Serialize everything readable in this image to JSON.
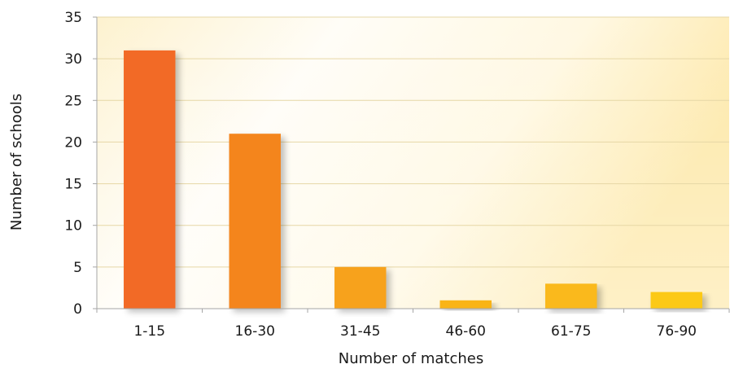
{
  "colors": {
    "bars": [
      "#f26a25",
      "#f4851f",
      "#f7a21e",
      "#f9b417",
      "#fab91a",
      "#fcc914"
    ],
    "grid": "#e6d7a6",
    "axis": "#a6a6a6",
    "bg_light": "#fffdf6",
    "bg_warm": "#fde9a6"
  },
  "chart_data": {
    "type": "bar",
    "categories": [
      "1-15",
      "16-30",
      "31-45",
      "46-60",
      "61-75",
      "76-90"
    ],
    "values": [
      31,
      21,
      5,
      1,
      3,
      2
    ],
    "xlabel": "Number of matches",
    "ylabel": "Number of schools",
    "ylim": [
      0,
      35
    ],
    "yticks": [
      "0",
      "5",
      "10",
      "15",
      "20",
      "25",
      "30",
      "35"
    ],
    "grid": true,
    "legend": "none"
  }
}
